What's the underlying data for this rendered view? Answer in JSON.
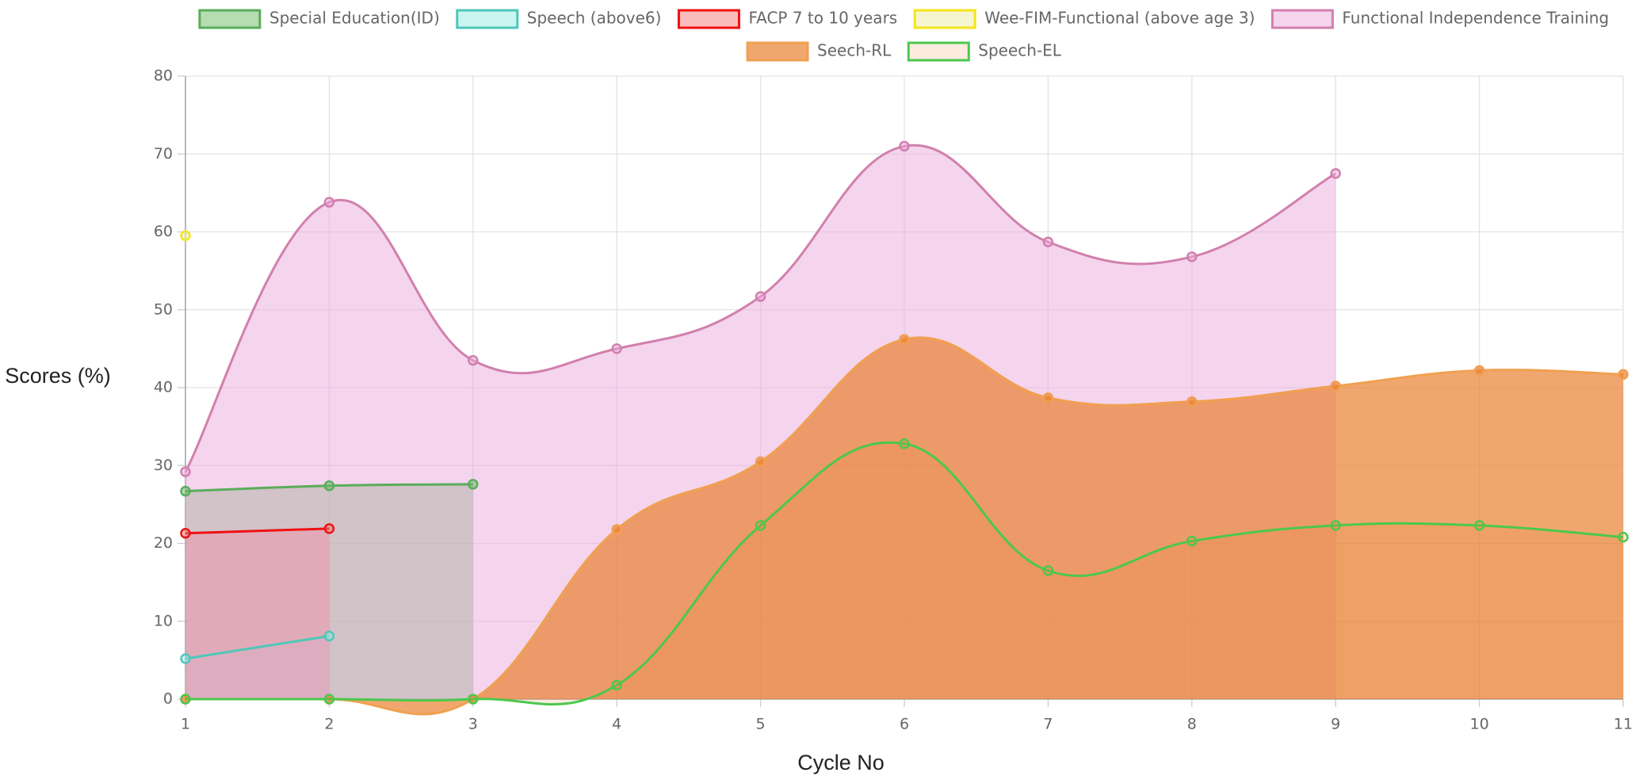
{
  "chart_data": {
    "type": "line",
    "x_label": "Cycle No",
    "y_label": "Scores (%)",
    "x": [
      1,
      2,
      3,
      4,
      5,
      6,
      7,
      8,
      9,
      10,
      11
    ],
    "xlim": [
      1,
      11
    ],
    "xticks": [
      1,
      2,
      3,
      4,
      5,
      6,
      7,
      8,
      9,
      10,
      11
    ],
    "ylim": [
      0,
      80
    ],
    "yticks": [
      0,
      10,
      20,
      30,
      40,
      50,
      60,
      70,
      80
    ],
    "grid": true,
    "legend": "top",
    "series": [
      {
        "name": "Special Education(ID)",
        "color": "#5aad5a",
        "fill": "rgba(110,185,100,0.5)",
        "values": [
          26.7,
          27.4,
          27.6,
          null,
          null,
          null,
          null,
          null,
          null,
          null,
          null
        ]
      },
      {
        "name": "Speech (above6)",
        "color": "#4fc7b8",
        "fill": "rgba(150,235,225,0.5)",
        "values": [
          5.2,
          8.1,
          null,
          null,
          null,
          null,
          null,
          null,
          null,
          null,
          null
        ]
      },
      {
        "name": "FACP 7 to 10 years",
        "color": "#ee1111",
        "fill": "rgba(245,120,120,0.5)",
        "values": [
          21.3,
          21.9,
          null,
          null,
          null,
          null,
          null,
          null,
          null,
          null,
          null
        ]
      },
      {
        "name": "Wee-FIM-Functional (above age 3)",
        "color": "#f5e51b",
        "fill": "rgba(235,235,160,0.5)",
        "values": [
          59.5,
          null,
          null,
          null,
          null,
          null,
          null,
          null,
          null,
          null,
          null
        ]
      },
      {
        "name": "Functional Independence Training",
        "color": "#d180ac",
        "fill": "rgba(236,170,222,0.5)",
        "values": [
          29.2,
          63.8,
          43.5,
          45,
          51.7,
          71,
          58.7,
          56.8,
          67.5,
          null,
          null
        ]
      },
      {
        "name": "Seech-RL",
        "color": "#f0a050",
        "fill": "rgba(233,130,50,0.7)",
        "values": [
          0,
          0,
          0,
          21.8,
          30.5,
          46.2,
          38.7,
          38.2,
          40.2,
          42.2,
          41.7
        ]
      },
      {
        "name": "Speech-EL",
        "color": "#4cc84c",
        "fill": "rgba(233,130,50,0.15)",
        "values": [
          0,
          0,
          0,
          1.8,
          22.3,
          32.8,
          16.5,
          20.3,
          22.3,
          22.3,
          20.8
        ]
      }
    ]
  }
}
